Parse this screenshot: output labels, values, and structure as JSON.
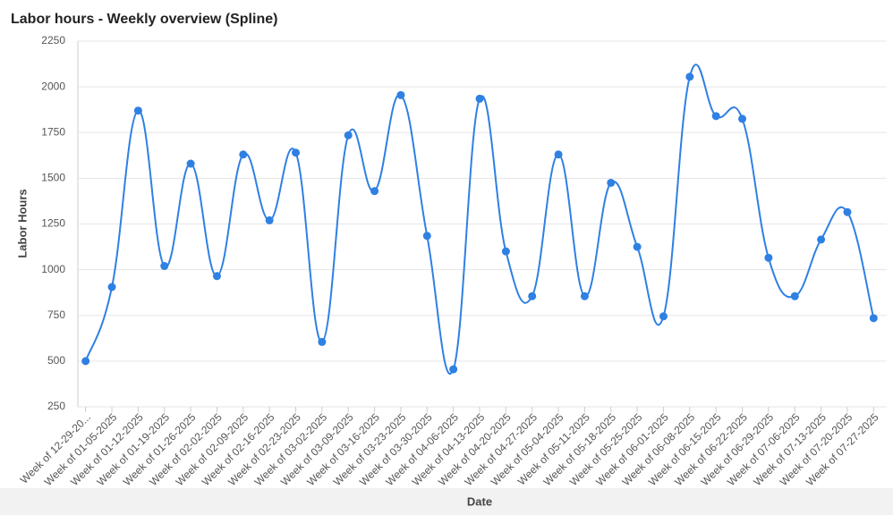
{
  "chart_data": {
    "type": "line",
    "title": "Labor hours - Weekly overview (Spline)",
    "x_label": "Date",
    "y_label": "Labor Hours",
    "categories": [
      "Week of 12-29-20...",
      "Week of 01-05-2025",
      "Week of 01-12-2025",
      "Week of 01-19-2025",
      "Week of 01-26-2025",
      "Week of 02-02-2025",
      "Week of 02-09-2025",
      "Week of 02-16-2025",
      "Week of 02-23-2025",
      "Week of 03-02-2025",
      "Week of 03-09-2025",
      "Week of 03-16-2025",
      "Week of 03-23-2025",
      "Week of 03-30-2025",
      "Week of 04-06-2025",
      "Week of 04-13-2025",
      "Week of 04-20-2025",
      "Week of 04-27-2025",
      "Week of 05-04-2025",
      "Week of 05-11-2025",
      "Week of 05-18-2025",
      "Week of 05-25-2025",
      "Week of 06-01-2025",
      "Week of 06-08-2025",
      "Week of 06-15-2025",
      "Week of 06-22-2025",
      "Week of 06-29-2025",
      "Week of 07-06-2025",
      "Week of 07-13-2025",
      "Week of 07-20-2025",
      "Week of 07-27-2025"
    ],
    "values": [
      500,
      905,
      1870,
      1020,
      1580,
      965,
      1630,
      1270,
      1640,
      605,
      1735,
      1430,
      1955,
      1185,
      455,
      1935,
      1100,
      855,
      1630,
      855,
      1475,
      1125,
      745,
      2055,
      1840,
      1825,
      1065,
      855,
      1165,
      1315,
      735
    ],
    "color": "#2f80e3",
    "ylim": [
      250,
      2250
    ],
    "yticks": [
      250,
      500,
      750,
      1000,
      1250,
      1500,
      1750,
      2000,
      2250
    ],
    "grid": true
  }
}
